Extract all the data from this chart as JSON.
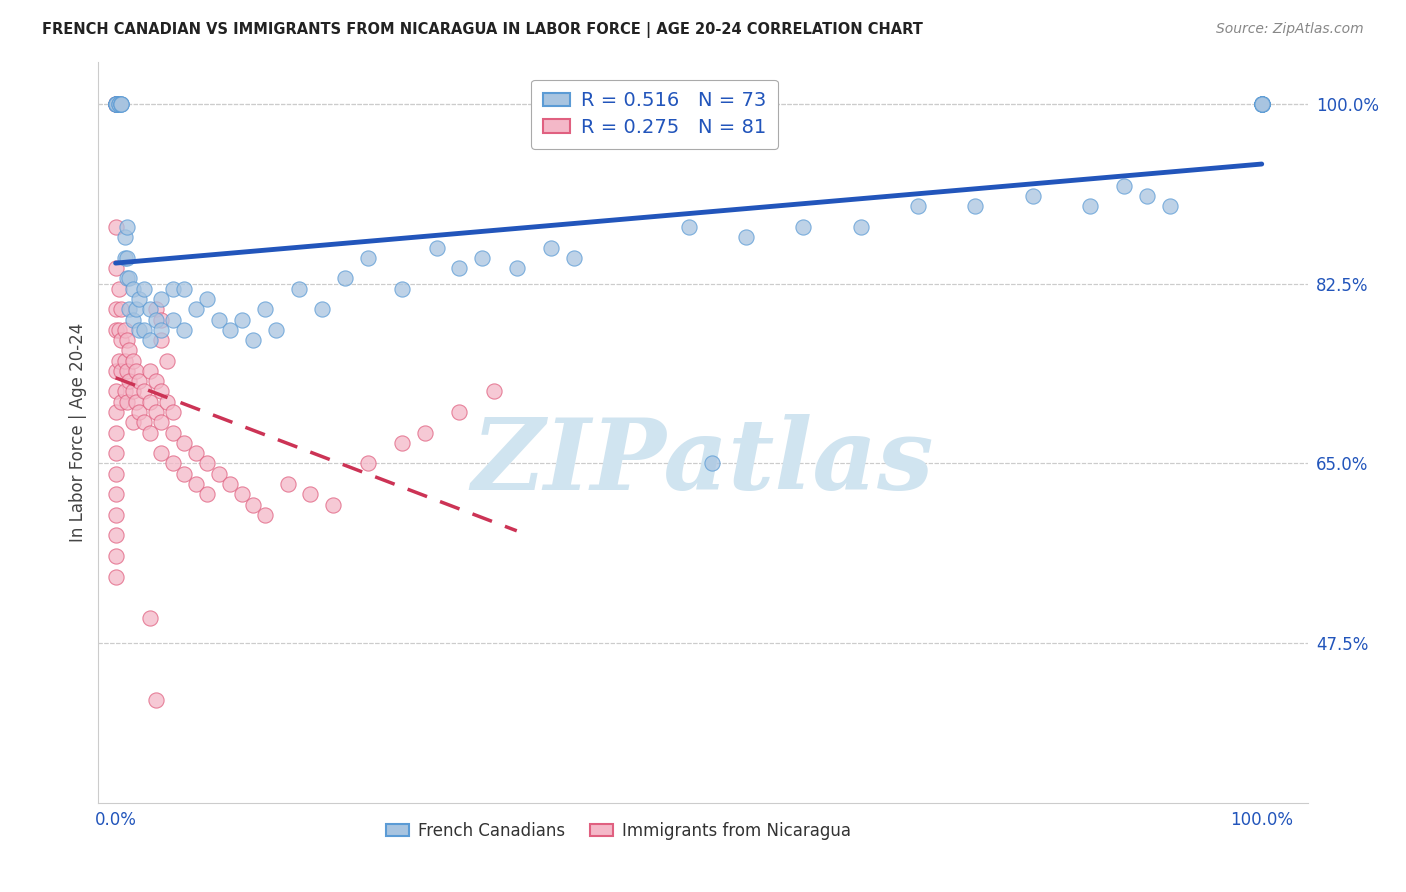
{
  "title": "FRENCH CANADIAN VS IMMIGRANTS FROM NICARAGUA IN LABOR FORCE | AGE 20-24 CORRELATION CHART",
  "source": "Source: ZipAtlas.com",
  "ylabel": "In Labor Force | Age 20-24",
  "R_blue": 0.516,
  "N_blue": 73,
  "R_pink": 0.275,
  "N_pink": 81,
  "blue_color": "#A8C4E0",
  "blue_edge_color": "#5B9BD5",
  "pink_color": "#F4B8C8",
  "pink_edge_color": "#E06080",
  "trendline_blue_color": "#2255BB",
  "trendline_pink_color": "#CC3355",
  "watermark": "ZIPatlas",
  "watermark_color": "#D0E4F0",
  "legend_blue_label": "French Canadians",
  "legend_pink_label": "Immigrants from Nicaragua",
  "ytick_values": [
    0.475,
    0.65,
    0.825,
    1.0
  ],
  "ytick_labels": [
    "47.5%",
    "65.0%",
    "82.5%",
    "100.0%"
  ],
  "ylim_low": 0.32,
  "ylim_high": 1.04,
  "xlim_low": -0.015,
  "xlim_high": 1.04,
  "blue_x": [
    0.0,
    0.0,
    0.0,
    0.0,
    0.0,
    0.0,
    0.003,
    0.003,
    0.005,
    0.005,
    0.005,
    0.008,
    0.008,
    0.01,
    0.01,
    0.01,
    0.012,
    0.012,
    0.015,
    0.015,
    0.018,
    0.02,
    0.02,
    0.025,
    0.025,
    0.03,
    0.03,
    0.035,
    0.04,
    0.04,
    0.05,
    0.05,
    0.06,
    0.06,
    0.07,
    0.08,
    0.09,
    0.1,
    0.11,
    0.12,
    0.13,
    0.14,
    0.16,
    0.18,
    0.2,
    0.22,
    0.25,
    0.28,
    0.3,
    0.32,
    0.35,
    0.38,
    0.4,
    0.5,
    0.52,
    0.55,
    0.6,
    0.65,
    0.7,
    0.75,
    0.8,
    0.85,
    0.88,
    0.9,
    0.92,
    1.0,
    1.0,
    1.0,
    1.0,
    1.0,
    1.0,
    1.0,
    1.0
  ],
  "blue_y": [
    1.0,
    1.0,
    1.0,
    1.0,
    1.0,
    1.0,
    1.0,
    1.0,
    1.0,
    1.0,
    1.0,
    0.85,
    0.87,
    0.83,
    0.85,
    0.88,
    0.8,
    0.83,
    0.79,
    0.82,
    0.8,
    0.78,
    0.81,
    0.78,
    0.82,
    0.77,
    0.8,
    0.79,
    0.78,
    0.81,
    0.79,
    0.82,
    0.78,
    0.82,
    0.8,
    0.81,
    0.79,
    0.78,
    0.79,
    0.77,
    0.8,
    0.78,
    0.82,
    0.8,
    0.83,
    0.85,
    0.82,
    0.86,
    0.84,
    0.85,
    0.84,
    0.86,
    0.85,
    0.88,
    0.65,
    0.87,
    0.88,
    0.88,
    0.9,
    0.9,
    0.91,
    0.9,
    0.92,
    0.91,
    0.9,
    1.0,
    1.0,
    1.0,
    1.0,
    1.0,
    1.0,
    1.0,
    1.0
  ],
  "pink_x": [
    0.0,
    0.0,
    0.0,
    0.0,
    0.0,
    0.0,
    0.0,
    0.0,
    0.0,
    0.0,
    0.0,
    0.0,
    0.0,
    0.0,
    0.0,
    0.0,
    0.0,
    0.0,
    0.0,
    0.0,
    0.003,
    0.003,
    0.003,
    0.005,
    0.005,
    0.005,
    0.005,
    0.008,
    0.008,
    0.008,
    0.01,
    0.01,
    0.01,
    0.012,
    0.012,
    0.015,
    0.015,
    0.015,
    0.018,
    0.018,
    0.02,
    0.02,
    0.025,
    0.025,
    0.03,
    0.03,
    0.035,
    0.04,
    0.04,
    0.05,
    0.05,
    0.06,
    0.06,
    0.07,
    0.07,
    0.08,
    0.08,
    0.09,
    0.1,
    0.11,
    0.12,
    0.13,
    0.15,
    0.17,
    0.19,
    0.22,
    0.25,
    0.27,
    0.3,
    0.33,
    0.035,
    0.04,
    0.04,
    0.045,
    0.03,
    0.035,
    0.04,
    0.045,
    0.05,
    0.03,
    0.035
  ],
  "pink_y": [
    1.0,
    1.0,
    1.0,
    1.0,
    1.0,
    0.88,
    0.84,
    0.8,
    0.78,
    0.74,
    0.72,
    0.7,
    0.68,
    0.66,
    0.64,
    0.62,
    0.6,
    0.58,
    0.56,
    0.54,
    0.82,
    0.78,
    0.75,
    0.8,
    0.77,
    0.74,
    0.71,
    0.78,
    0.75,
    0.72,
    0.77,
    0.74,
    0.71,
    0.76,
    0.73,
    0.75,
    0.72,
    0.69,
    0.74,
    0.71,
    0.73,
    0.7,
    0.72,
    0.69,
    0.71,
    0.68,
    0.7,
    0.69,
    0.66,
    0.68,
    0.65,
    0.67,
    0.64,
    0.66,
    0.63,
    0.65,
    0.62,
    0.64,
    0.63,
    0.62,
    0.61,
    0.6,
    0.63,
    0.62,
    0.61,
    0.65,
    0.67,
    0.68,
    0.7,
    0.72,
    0.8,
    0.79,
    0.77,
    0.75,
    0.74,
    0.73,
    0.72,
    0.71,
    0.7,
    0.5,
    0.42
  ]
}
